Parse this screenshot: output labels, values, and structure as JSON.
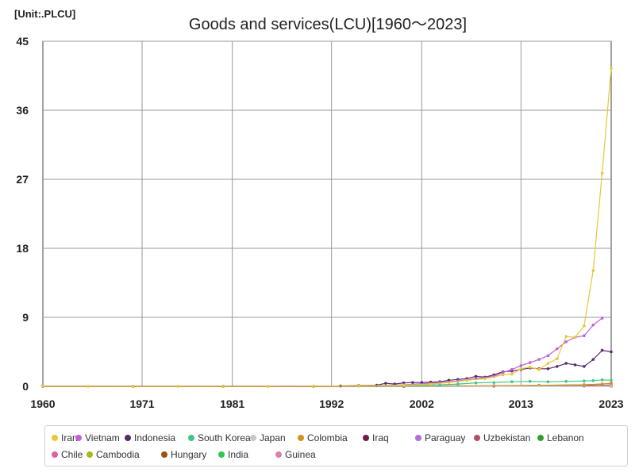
{
  "chart_data": {
    "type": "line",
    "title": "Goods and services(LCU)[1960～2023]",
    "unit": "[Unit:.PLCU]",
    "xlim": [
      1960,
      2023
    ],
    "ylim": [
      0,
      45
    ],
    "x_ticks": [
      "1960",
      "1971",
      "1981",
      "1992",
      "2002",
      "2013",
      "2023"
    ],
    "y_ticks": [
      "0",
      "9",
      "18",
      "27",
      "36",
      "45"
    ],
    "grid": true,
    "legend_position": "bottom",
    "series": [
      {
        "name": "Iran",
        "color": "#e6c832",
        "x": [
          1960,
          1965,
          1970,
          1975,
          1980,
          1985,
          1990,
          1995,
          2000,
          2003,
          2005,
          2007,
          2009,
          2011,
          2012,
          2013,
          2014,
          2015,
          2016,
          2017,
          2018,
          2019,
          2020,
          2021,
          2022,
          2023
        ],
        "y": [
          0,
          0,
          0,
          0,
          0,
          0,
          0.01,
          0.05,
          0.15,
          0.3,
          0.5,
          0.8,
          1.0,
          1.5,
          1.6,
          2.3,
          2.5,
          2.2,
          3.0,
          3.6,
          6.5,
          6.4,
          7.9,
          15.1,
          27.8,
          41.5
        ]
      },
      {
        "name": "Vietnam",
        "color": "#c060d8",
        "x": [
          1960,
          1970,
          1980,
          1990,
          1995,
          2000,
          2004,
          2006,
          2008,
          2010,
          2011,
          2012,
          2013,
          2014,
          2015,
          2016,
          2017,
          2018,
          2019,
          2020,
          2021,
          2022
        ],
        "y": [
          0,
          0,
          0,
          0,
          0.05,
          0.2,
          0.5,
          0.7,
          1.0,
          1.3,
          1.8,
          2.2,
          2.7,
          3.1,
          3.5,
          4.0,
          4.9,
          5.8,
          6.4,
          6.6,
          8.0,
          8.9
        ]
      },
      {
        "name": "Indonesia",
        "color": "#5a2a6a",
        "x": [
          1960,
          1970,
          1980,
          1990,
          1993,
          1995,
          1997,
          1998,
          1999,
          2000,
          2001,
          2002,
          2003,
          2004,
          2005,
          2006,
          2007,
          2008,
          2009,
          2010,
          2011,
          2012,
          2013,
          2014,
          2015,
          2016,
          2017,
          2018,
          2019,
          2020,
          2021,
          2022,
          2023
        ],
        "y": [
          0,
          0,
          0,
          0,
          0.05,
          0.1,
          0.15,
          0.4,
          0.3,
          0.45,
          0.5,
          0.5,
          0.55,
          0.6,
          0.8,
          0.9,
          1.0,
          1.3,
          1.2,
          1.5,
          1.9,
          2.0,
          2.2,
          2.4,
          2.3,
          2.3,
          2.6,
          3.0,
          2.8,
          2.6,
          3.5,
          4.7,
          4.5
        ]
      },
      {
        "name": "South Korea",
        "color": "#40c880",
        "x": [
          1960,
          1970,
          1980,
          1990,
          2000,
          2004,
          2006,
          2008,
          2010,
          2012,
          2014,
          2016,
          2018,
          2020,
          2021,
          2022,
          2023
        ],
        "y": [
          0,
          0,
          0,
          0.02,
          0.1,
          0.2,
          0.3,
          0.45,
          0.5,
          0.6,
          0.65,
          0.6,
          0.65,
          0.7,
          0.75,
          0.85,
          0.8
        ]
      },
      {
        "name": "Japan",
        "color": "#c8c8c8",
        "x": [
          1960,
          1990,
          2023
        ],
        "y": [
          0,
          0.02,
          0.02
        ]
      },
      {
        "name": "Colombia",
        "color": "#d89020",
        "x": [
          1960,
          1990,
          2000,
          2010,
          2015,
          2020,
          2022,
          2023
        ],
        "y": [
          0,
          0,
          0.05,
          0.1,
          0.15,
          0.2,
          0.3,
          0.35
        ]
      },
      {
        "name": "Iraq",
        "color": "#6a2050",
        "x": [
          1960,
          1990,
          2000,
          2010,
          2020,
          2023
        ],
        "y": [
          0,
          0,
          0.03,
          0.05,
          0.08,
          0.1
        ]
      },
      {
        "name": "Paraguay",
        "color": "#b070e0",
        "x": [
          1960,
          1990,
          2000,
          2010,
          2020,
          2023
        ],
        "y": [
          0,
          0,
          0.02,
          0.04,
          0.06,
          0.07
        ]
      },
      {
        "name": "Uzbekistan",
        "color": "#b05060",
        "x": [
          1960,
          1990,
          2000,
          2010,
          2020,
          2022,
          2023
        ],
        "y": [
          0,
          0,
          0.01,
          0.05,
          0.2,
          0.3,
          0.4
        ]
      },
      {
        "name": "Lebanon",
        "color": "#30a030",
        "x": [
          1960,
          1990,
          2000,
          2010,
          2020,
          2023
        ],
        "y": [
          0,
          0,
          0.01,
          0.02,
          0.05,
          0.1
        ]
      },
      {
        "name": "Chile",
        "color": "#e060a0",
        "x": [
          1960,
          1990,
          2023
        ],
        "y": [
          0,
          0,
          0.01
        ]
      },
      {
        "name": "Cambodia",
        "color": "#a8b820",
        "x": [
          1960,
          1990,
          2023
        ],
        "y": [
          0,
          0,
          0.01
        ]
      },
      {
        "name": "Hungary",
        "color": "#a05010",
        "x": [
          1960,
          1990,
          2023
        ],
        "y": [
          0,
          0,
          0.01
        ]
      },
      {
        "name": "India",
        "color": "#30c850",
        "x": [
          1960,
          1990,
          2023
        ],
        "y": [
          0,
          0,
          0.01
        ]
      },
      {
        "name": "Guinea",
        "color": "#e080b0",
        "x": [
          1960,
          1990,
          2023
        ],
        "y": [
          0,
          0,
          0.01
        ]
      }
    ]
  }
}
